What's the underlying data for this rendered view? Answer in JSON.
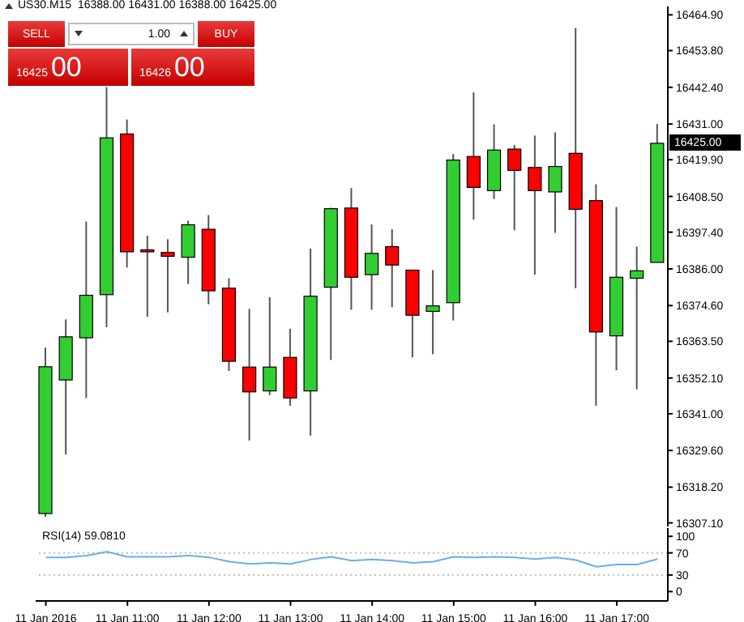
{
  "chart_data": [
    {
      "type": "candlestick",
      "title": "US30.M15  16388.00 16431.00 16388.00 16425.00",
      "categories": [
        null,
        null,
        null,
        null,
        null,
        null,
        null,
        null,
        null,
        null,
        null,
        null,
        null,
        null,
        null,
        null,
        null,
        null,
        null,
        null,
        null,
        null,
        null,
        null,
        null,
        null,
        null,
        null,
        null,
        null,
        null
      ],
      "ohlc": [
        [
          16310.0,
          16361.5,
          16309.0,
          16355.6
        ],
        [
          16351.5,
          16370.3,
          16328.3,
          16364.9
        ],
        [
          16364.6,
          16400.7,
          16345.9,
          16377.8
        ],
        [
          16378.0,
          16442.5,
          16367.9,
          16426.7
        ],
        [
          16427.9,
          16432.4,
          16386.4,
          16391.3
        ],
        [
          16391.9,
          16396.3,
          16371.1,
          16391.3
        ],
        [
          16391.1,
          16395.2,
          16372.5,
          16389.9
        ],
        [
          16389.6,
          16401.0,
          16381.3,
          16399.7
        ],
        [
          16398.3,
          16402.7,
          16375.0,
          16379.2
        ],
        [
          16380.0,
          16383.1,
          16354.3,
          16357.3
        ],
        [
          16355.5,
          16373.6,
          16332.7,
          16347.8
        ],
        [
          16348.1,
          16377.2,
          16346.8,
          16355.5
        ],
        [
          16358.5,
          16367.4,
          16343.5,
          16345.9
        ],
        [
          16348.1,
          16392.3,
          16334.2,
          16377.5
        ],
        [
          16380.3,
          16405.0,
          16357.7,
          16404.7
        ],
        [
          16404.9,
          16411.1,
          16373.3,
          16383.4
        ],
        [
          16384.2,
          16399.8,
          16373.3,
          16390.8
        ],
        [
          16392.9,
          16398.3,
          16374.1,
          16387.2
        ],
        [
          16385.6,
          16385.6,
          16358.5,
          16371.6
        ],
        [
          16372.8,
          16385.6,
          16359.5,
          16374.5
        ],
        [
          16375.5,
          16421.7,
          16370.0,
          16419.8
        ],
        [
          16420.9,
          16440.8,
          16401.3,
          16411.3
        ],
        [
          16410.3,
          16430.9,
          16407.7,
          16422.9
        ],
        [
          16423.2,
          16424.5,
          16398.0,
          16416.6
        ],
        [
          16417.5,
          16427.4,
          16384.2,
          16410.3
        ],
        [
          16409.9,
          16428.4,
          16397.2,
          16417.8
        ],
        [
          16421.9,
          16460.8,
          16380.0,
          16404.5
        ],
        [
          16407.2,
          16412.3,
          16343.5,
          16366.4
        ],
        [
          16365.2,
          16405.2,
          16354.5,
          16383.4
        ],
        [
          16383.1,
          16392.9,
          16348.6,
          16385.4
        ],
        [
          16388.0,
          16431.0,
          16388.0,
          16425.0
        ]
      ],
      "colors": [
        "#32cd32",
        "#32cd32",
        "#32cd32",
        "#32cd32",
        "#ff0000",
        "#ff0000",
        "#ff0000",
        "#32cd32",
        "#ff0000",
        "#ff0000",
        "#ff0000",
        "#32cd32",
        "#ff0000",
        "#32cd32",
        "#32cd32",
        "#ff0000",
        "#32cd32",
        "#ff0000",
        "#ff0000",
        "#32cd32",
        "#32cd32",
        "#ff0000",
        "#32cd32",
        "#ff0000",
        "#ff0000",
        "#32cd32",
        "#ff0000",
        "#ff0000",
        "#32cd32",
        "#32cd32",
        "#32cd32"
      ],
      "ylim": [
        16306.0,
        16467.5
      ],
      "yticks": [
        {
          "value": 16307.1,
          "label": "16307.10"
        },
        {
          "value": 16318.2,
          "label": "16318.20"
        },
        {
          "value": 16329.6,
          "label": "16329.60"
        },
        {
          "value": 16341.0,
          "label": "16341.00"
        },
        {
          "value": 16352.1,
          "label": "16352.10"
        },
        {
          "value": 16363.5,
          "label": "16363.50"
        },
        {
          "value": 16374.6,
          "label": "16374.60"
        },
        {
          "value": 16386.0,
          "label": "16386.00"
        },
        {
          "value": 16397.4,
          "label": "16397.40"
        },
        {
          "value": 16408.5,
          "label": "16408.50"
        },
        {
          "value": 16419.9,
          "label": "16419.90"
        },
        {
          "value": 16431.0,
          "label": "16431.00"
        },
        {
          "value": 16442.4,
          "label": "16442.40"
        },
        {
          "value": 16453.8,
          "label": "16453.80"
        },
        {
          "value": 16464.9,
          "label": "16464.90"
        }
      ],
      "tick_labels": "y",
      "annotations": [
        "SELL",
        "1.00",
        "BUY",
        "16425",
        "00",
        "16426",
        "00",
        "16425.00"
      ]
    },
    {
      "type": "line",
      "title": "RSI(14) 59.0810",
      "categories": [
        "11 Jan 2016",
        null,
        null,
        null,
        "11 Jan 11:00",
        null,
        null,
        null,
        "11 Jan 12:00",
        null,
        null,
        null,
        "11 Jan 13:00",
        null,
        null,
        null,
        "11 Jan 14:00",
        null,
        null,
        null,
        "11 Jan 15:00",
        null,
        null,
        null,
        "11 Jan 16:00",
        null,
        null,
        null,
        "11 Jan 17:00",
        null,
        null
      ],
      "series": [
        {
          "color": "#6aaeea",
          "values": [
            62,
            62,
            65,
            72,
            63,
            63,
            63,
            65,
            62,
            54,
            50,
            52,
            50,
            58,
            63,
            56,
            58,
            56,
            52,
            54,
            63,
            62,
            63,
            62,
            59,
            62,
            57,
            45,
            49,
            49,
            59
          ]
        }
      ],
      "ylim": [
        -17,
        115
      ],
      "yticks": [
        0,
        30,
        70,
        100
      ],
      "ref_lines": [
        {
          "axis": "y",
          "value": 70,
          "color": "#c0c0c0",
          "line_style": "dotted"
        },
        {
          "axis": "y",
          "value": 30,
          "color": "#c0c0c0",
          "line_style": "dotted"
        }
      ]
    }
  ]
}
